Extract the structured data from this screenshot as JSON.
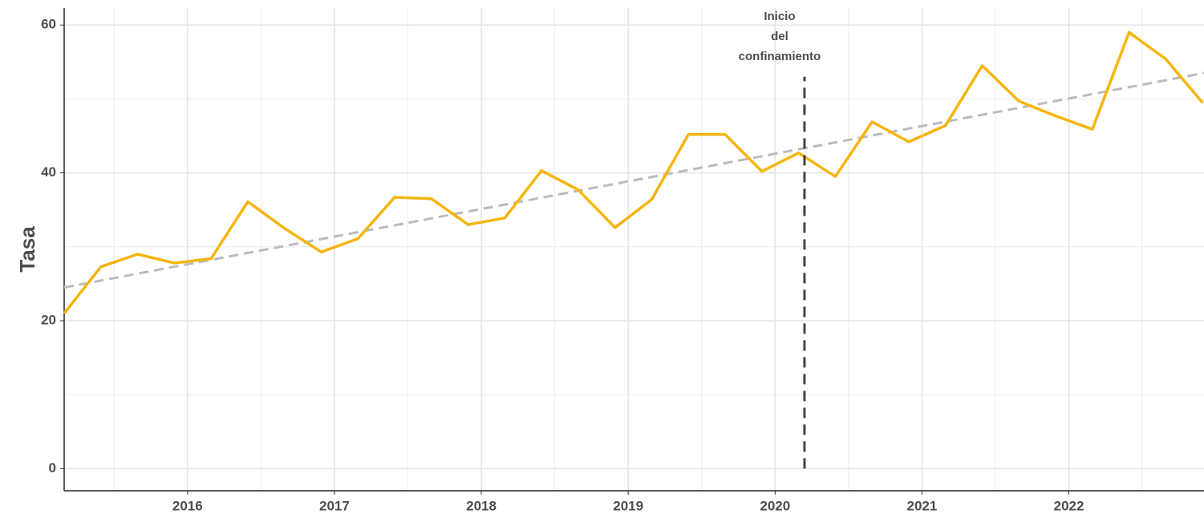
{
  "chart_data": {
    "type": "line",
    "y_label": "Tasa",
    "x": [
      2015.16,
      2015.41,
      2015.66,
      2015.91,
      2016.16,
      2016.41,
      2016.66,
      2016.91,
      2017.16,
      2017.41,
      2017.66,
      2017.91,
      2018.16,
      2018.41,
      2018.66,
      2018.91,
      2019.16,
      2019.41,
      2019.66,
      2019.91,
      2020.16,
      2020.41,
      2020.66,
      2020.91,
      2021.16,
      2021.41,
      2021.66,
      2021.91,
      2022.16,
      2022.41,
      2022.66,
      2022.91
    ],
    "series": [
      {
        "color": "#f5b50e",
        "values": [
          21,
          27.3,
          29,
          27.8,
          28.4,
          36.1,
          32.5,
          29.3,
          31.1,
          36.7,
          36.5,
          33,
          33.9,
          40.3,
          37.7,
          32.6,
          36.4,
          45.2,
          45.2,
          40.2,
          42.7,
          39.5,
          46.9,
          44.2,
          46.4,
          54.5,
          49.7,
          47.7,
          45.9,
          59,
          55.4,
          49.5
        ]
      }
    ],
    "trend": {
      "x": [
        2015.16,
        2022.92
      ],
      "values": [
        24.5,
        53.5
      ],
      "color": "#bbbbbb"
    },
    "event": {
      "x": 2020.2,
      "values": [
        0,
        53
      ],
      "color": "#444444",
      "label": [
        "Inicio",
        "del",
        "confinamiento"
      ]
    },
    "xlim": [
      2015.16,
      2022.92
    ],
    "xticks": [
      2016,
      2017,
      2018,
      2019,
      2020,
      2021,
      2022
    ],
    "xminor": [
      2015.5,
      2016.5,
      2017.5,
      2018.5,
      2019.5,
      2020.5,
      2021.5,
      2022.5
    ],
    "ylim": [
      -3,
      62.3
    ],
    "yticks": [
      0,
      20,
      40,
      60
    ],
    "yminor": [
      10,
      30,
      50
    ],
    "grid": true
  }
}
